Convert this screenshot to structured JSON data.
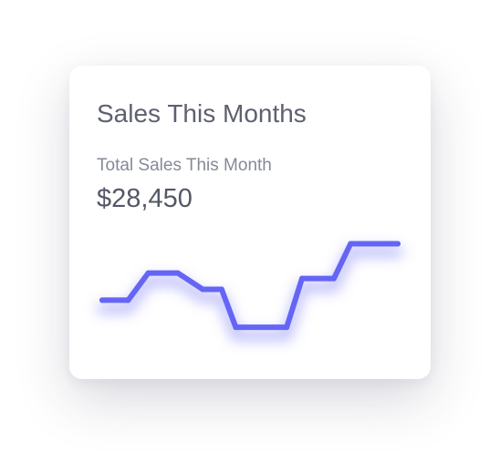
{
  "card": {
    "title": "Sales This Months",
    "subtitle": "Total Sales This Month",
    "value": "$28,450"
  },
  "colors": {
    "line": "#6565f5",
    "glow": "#8b8bf8"
  },
  "chart_data": {
    "type": "line",
    "title": "",
    "xlabel": "",
    "ylabel": "",
    "grid": false,
    "legend": "none",
    "ylim": [
      0,
      10
    ],
    "x": [
      0,
      1.1,
      1.95,
      3.2,
      4.25,
      5.05,
      5.65,
      7.8,
      8.45,
      9.8,
      10.5,
      12.5
    ],
    "values": [
      4,
      4,
      6.5,
      6.5,
      5,
      5,
      1.5,
      1.5,
      6,
      6,
      9.2,
      9.2
    ]
  }
}
